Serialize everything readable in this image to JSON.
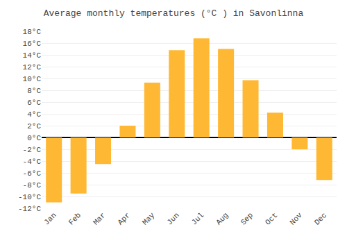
{
  "chart_data": {
    "type": "bar",
    "title": "Average monthly temperatures (°C ) in Savonlinna",
    "categories": [
      "Jan",
      "Feb",
      "Mar",
      "Apr",
      "May",
      "Jun",
      "Jul",
      "Aug",
      "Sep",
      "Oct",
      "Nov",
      "Dec"
    ],
    "values": [
      -11,
      -9.5,
      -4.5,
      2,
      9.3,
      14.8,
      16.8,
      15,
      9.7,
      4.2,
      -2.0,
      -7.2
    ],
    "color": "#FFB833",
    "ylim": [
      -12,
      18
    ],
    "yticks": [
      {
        "value": -12,
        "label": "-12°C"
      },
      {
        "value": -10,
        "label": "-10°C"
      },
      {
        "value": -8,
        "label": "-8°C"
      },
      {
        "value": -6,
        "label": "-6°C"
      },
      {
        "value": -4,
        "label": "-4°C"
      },
      {
        "value": -2,
        "label": "-2°C"
      },
      {
        "value": 0,
        "label": "0°C"
      },
      {
        "value": 2,
        "label": "2°C"
      },
      {
        "value": 4,
        "label": "4°C"
      },
      {
        "value": 6,
        "label": "6°C"
      },
      {
        "value": 8,
        "label": "8°C"
      },
      {
        "value": 10,
        "label": "10°C"
      },
      {
        "value": 12,
        "label": "12°C"
      },
      {
        "value": 14,
        "label": "14°C"
      },
      {
        "value": 16,
        "label": "16°C"
      },
      {
        "value": 18,
        "label": "18°C"
      }
    ],
    "grid": true
  }
}
